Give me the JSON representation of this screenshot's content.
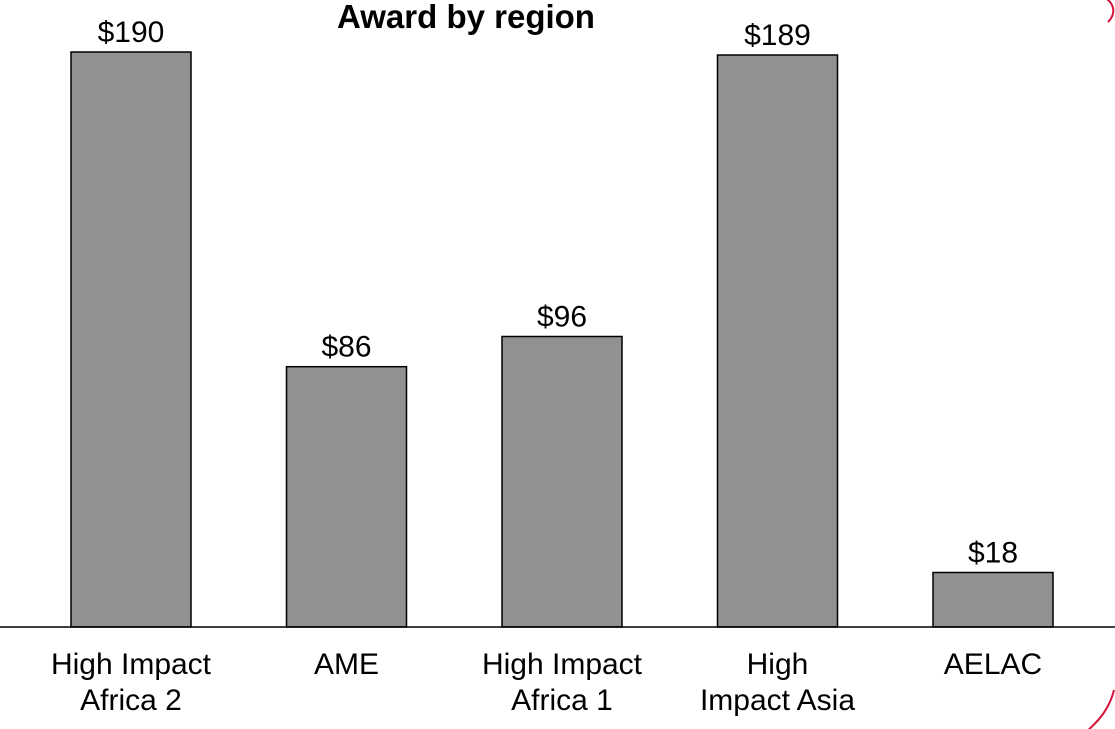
{
  "chart_data": {
    "type": "bar",
    "title": "Award by region",
    "categories": [
      [
        "High Impact",
        "Africa 2"
      ],
      [
        "AME"
      ],
      [
        "High Impact",
        "Africa 1"
      ],
      [
        "High",
        "Impact Asia"
      ],
      [
        "AELAC"
      ]
    ],
    "values": [
      190,
      86,
      96,
      189,
      18
    ],
    "value_labels": [
      "$190",
      "$86",
      "$96",
      "$189",
      "$18"
    ],
    "ylim": [
      0,
      190
    ],
    "grid": false,
    "legend": "none",
    "colors": {
      "bar_fill": "#919191",
      "bar_stroke": "#000000",
      "accent_arc": "#d6143c"
    }
  }
}
